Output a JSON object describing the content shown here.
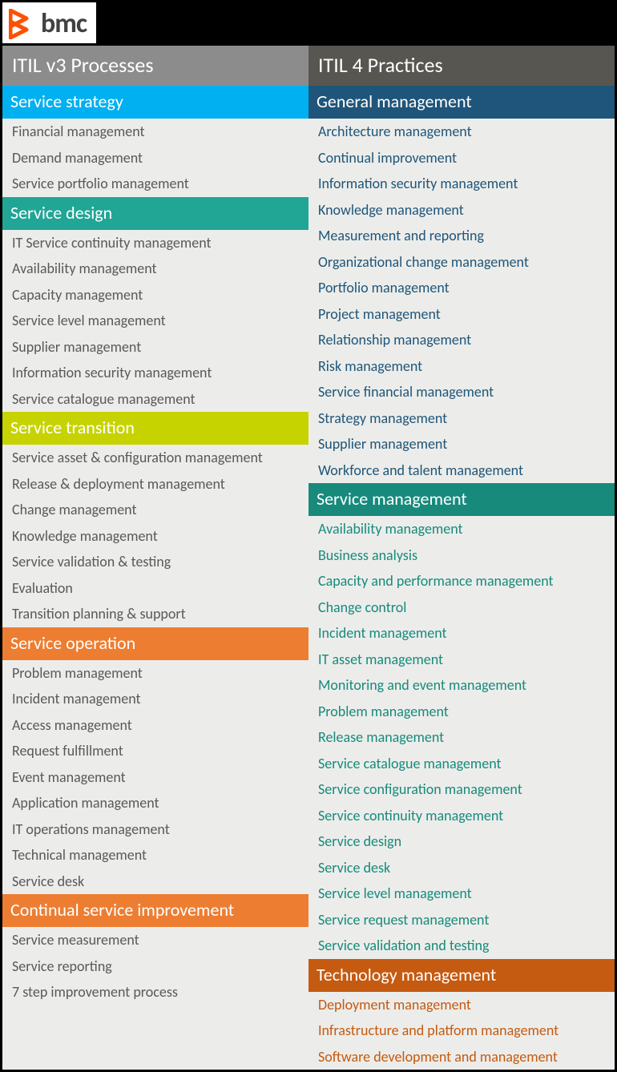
{
  "logo_text": "bmc",
  "logo_color": "#fe5000",
  "logo_text_color": "#414141",
  "background": "#ecedea",
  "column_headers": {
    "left": {
      "label": "ITIL v3 Processes",
      "bg": "#8c8c8c"
    },
    "right": {
      "label": "ITIL 4 Practices",
      "bg": "#575651"
    }
  },
  "left_column": {
    "item_color": "#595959",
    "sections": [
      {
        "title": "Service strategy",
        "bg": "#00b0f0",
        "items": [
          "Financial management",
          "Demand management",
          "Service portfolio management"
        ]
      },
      {
        "title": "Service design",
        "bg": "#21a696",
        "items": [
          "IT Service continuity management",
          "Availability management",
          "Capacity management",
          "Service level management",
          "Supplier management",
          "Information security management",
          "Service catalogue management"
        ]
      },
      {
        "title": "Service transition",
        "bg": "#c7d300",
        "items": [
          "Service asset & configuration management",
          "Release & deployment management",
          "Change management",
          "Knowledge management",
          "Service validation & testing",
          "Evaluation",
          "Transition planning & support"
        ]
      },
      {
        "title": "Service operation",
        "bg": "#ed7d31",
        "items": [
          "Problem management",
          "Incident management",
          "Access management",
          "Request fulfillment",
          "Event management",
          "Application management",
          "IT operations management",
          "Technical management",
          "Service desk"
        ]
      },
      {
        "title": "Continual service improvement",
        "bg": "#ed7d31",
        "items": [
          "Service measurement",
          "Service reporting",
          "7 step improvement process"
        ]
      }
    ]
  },
  "right_column": {
    "sections": [
      {
        "title": "General management",
        "bg": "#1f557a",
        "item_color": "#1f557a",
        "items": [
          "Architecture management",
          "Continual improvement",
          "Information security management",
          "Knowledge management",
          "Measurement and reporting",
          "Organizational change management",
          "Portfolio management",
          "Project management",
          "Relationship management",
          "Risk management",
          "Service financial management",
          "Strategy management",
          "Supplier management",
          "Workforce and talent management"
        ]
      },
      {
        "title": "Service management",
        "bg": "#178a7c",
        "item_color": "#178a7c",
        "items": [
          "Availability management",
          "Business analysis",
          "Capacity and performance management",
          "Change control",
          "Incident management",
          "IT asset management",
          "Monitoring and event management",
          "Problem management",
          "Release management",
          "Service catalogue management",
          "Service configuration management",
          "Service continuity management",
          "Service design",
          "Service desk",
          "Service level management",
          "Service request management",
          "Service validation and testing"
        ]
      },
      {
        "title": "Technology management",
        "bg": "#c55a11",
        "item_color": "#c55a11",
        "items": [
          "Deployment management",
          "Infrastructure and platform management",
          "Software development and management"
        ]
      }
    ]
  }
}
